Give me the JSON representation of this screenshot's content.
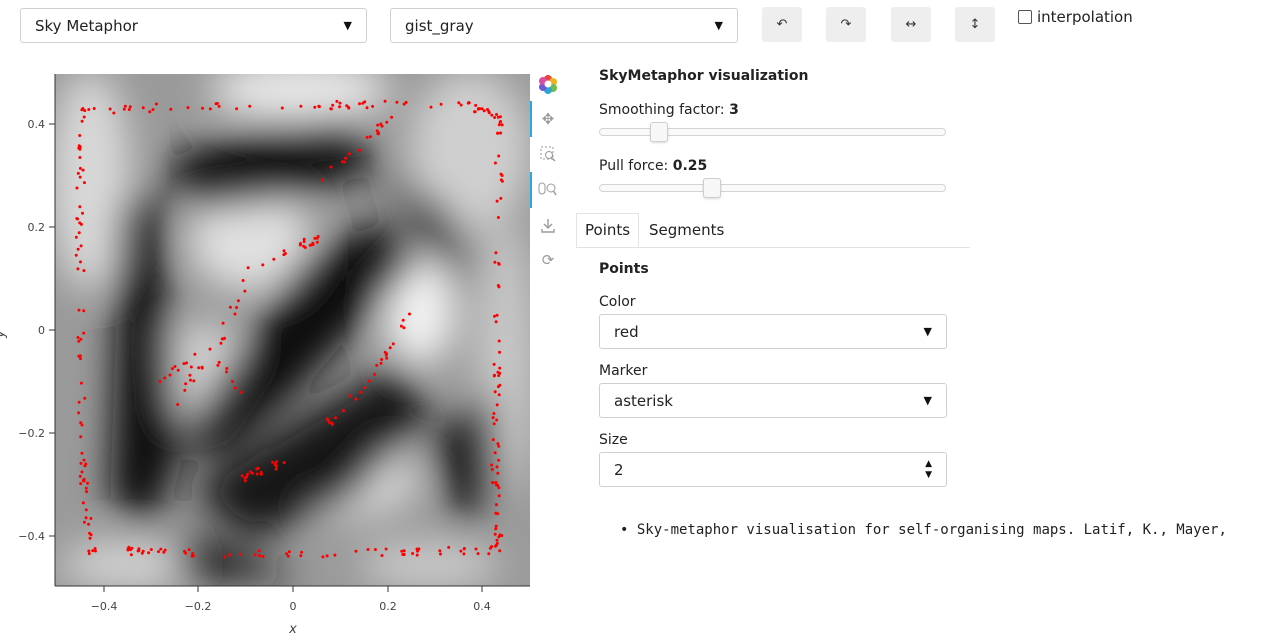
{
  "top_controls": {
    "dataset_select": "Sky Metaphor",
    "colormap_select": "gist_gray",
    "undo_label": "↶",
    "redo_label": "↷",
    "flip_h_label": "↔",
    "flip_v_label": "↕",
    "interpolation_label": "interpolation",
    "interpolation_checked": false
  },
  "plot": {
    "xlabel": "x",
    "ylabel": "y",
    "xticks": [
      "−0.4",
      "−0.2",
      "0",
      "0.2",
      "0.4"
    ],
    "yticks": [
      "0.4",
      "0.2",
      "0",
      "−0.2",
      "−0.4"
    ],
    "point_color": "#ff0000",
    "colormap": "gist_gray"
  },
  "toolbar": {
    "icons": [
      "bokeh-logo-icon",
      "pan-icon",
      "box-zoom-icon",
      "wheel-zoom-icon",
      "save-icon",
      "reset-icon"
    ]
  },
  "panel": {
    "title": "SkyMetaphor visualization",
    "smoothing_label": "Smoothing factor: ",
    "smoothing_value": "3",
    "smoothing_fraction": 0.15,
    "pull_label": "Pull force: ",
    "pull_value": "0.25",
    "pull_fraction": 0.31,
    "tabs": [
      "Points",
      "Segments"
    ],
    "active_tab": "Points",
    "section_title": "Points",
    "color_label": "Color",
    "color_value": "red",
    "marker_label": "Marker",
    "marker_value": "asterisk",
    "size_label": "Size",
    "size_value": "2"
  },
  "reference": "Sky-metaphor visualisation for self-organising maps. Latif, K., Mayer,"
}
